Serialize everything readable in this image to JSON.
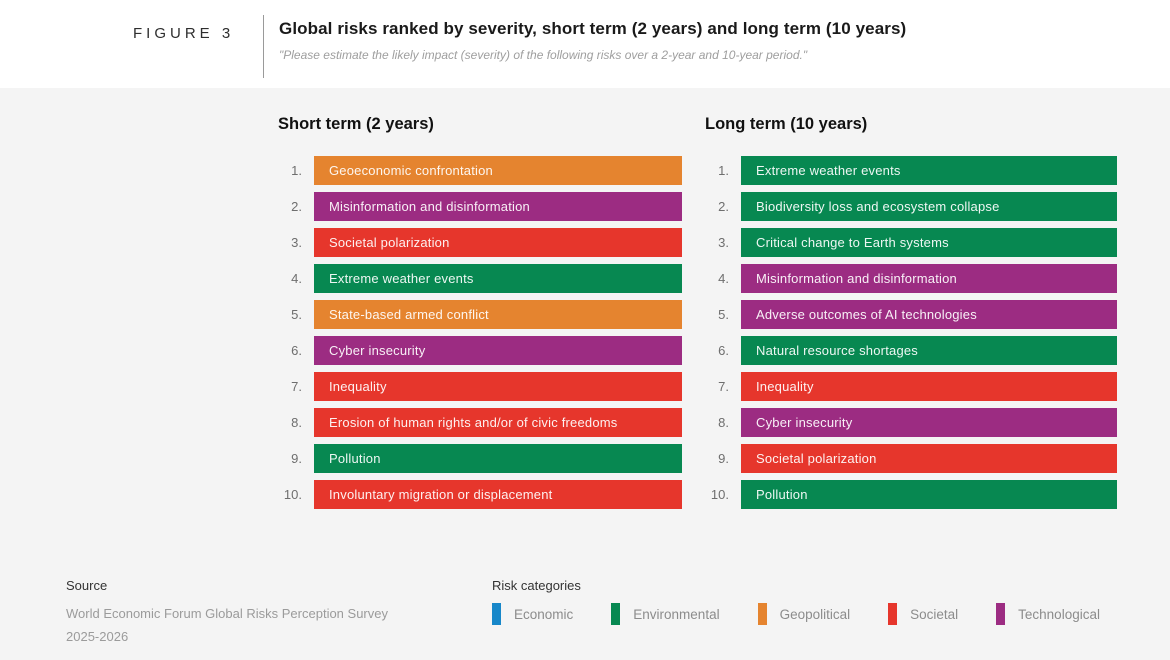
{
  "figure": {
    "label": "FIGURE 3",
    "title": "Global risks ranked by severity, short term (2 years) and long term (10 years)",
    "subtitle": "\"Please estimate the likely impact (severity) of the following risks over a 2-year and 10-year period.\""
  },
  "chart_data": {
    "type": "table",
    "title": "Global risks ranked by severity, short term (2 years) and long term (10 years)",
    "risk_category_colors": {
      "Economic": "#1787C9",
      "Environmental": "#078851",
      "Geopolitical": "#E5842F",
      "Societal": "#E6362C",
      "Technological": "#9C2C82"
    },
    "columns": [
      {
        "heading": "Short term (2 years)",
        "items": [
          {
            "rank": "1.",
            "label": "Geoeconomic confrontation",
            "category": "Geopolitical"
          },
          {
            "rank": "2.",
            "label": "Misinformation and disinformation",
            "category": "Technological"
          },
          {
            "rank": "3.",
            "label": "Societal polarization",
            "category": "Societal"
          },
          {
            "rank": "4.",
            "label": "Extreme weather events",
            "category": "Environmental"
          },
          {
            "rank": "5.",
            "label": "State-based armed conflict",
            "category": "Geopolitical"
          },
          {
            "rank": "6.",
            "label": "Cyber insecurity",
            "category": "Technological"
          },
          {
            "rank": "7.",
            "label": "Inequality",
            "category": "Societal"
          },
          {
            "rank": "8.",
            "label": "Erosion of human rights and/or of civic freedoms",
            "category": "Societal"
          },
          {
            "rank": "9.",
            "label": "Pollution",
            "category": "Environmental"
          },
          {
            "rank": "10.",
            "label": "Involuntary migration or displacement",
            "category": "Societal"
          }
        ]
      },
      {
        "heading": "Long term (10 years)",
        "items": [
          {
            "rank": "1.",
            "label": "Extreme weather events",
            "category": "Environmental"
          },
          {
            "rank": "2.",
            "label": "Biodiversity loss and ecosystem collapse",
            "category": "Environmental"
          },
          {
            "rank": "3.",
            "label": "Critical change to Earth systems",
            "category": "Environmental"
          },
          {
            "rank": "4.",
            "label": "Misinformation and disinformation",
            "category": "Technological"
          },
          {
            "rank": "5.",
            "label": "Adverse outcomes of AI technologies",
            "category": "Technological"
          },
          {
            "rank": "6.",
            "label": "Natural resource shortages",
            "category": "Environmental"
          },
          {
            "rank": "7.",
            "label": "Inequality",
            "category": "Societal"
          },
          {
            "rank": "8.",
            "label": "Cyber insecurity",
            "category": "Technological"
          },
          {
            "rank": "9.",
            "label": "Societal polarization",
            "category": "Societal"
          },
          {
            "rank": "10.",
            "label": "Pollution",
            "category": "Environmental"
          }
        ]
      }
    ]
  },
  "source": {
    "heading": "Source",
    "line1": "World Economic Forum Global Risks Perception Survey",
    "line2": "2025-2026"
  },
  "legend": {
    "heading": "Risk categories",
    "items": [
      {
        "label": "Economic",
        "category": "Economic"
      },
      {
        "label": "Environmental",
        "category": "Environmental"
      },
      {
        "label": "Geopolitical",
        "category": "Geopolitical"
      },
      {
        "label": "Societal",
        "category": "Societal"
      },
      {
        "label": "Technological",
        "category": "Technological"
      }
    ]
  }
}
